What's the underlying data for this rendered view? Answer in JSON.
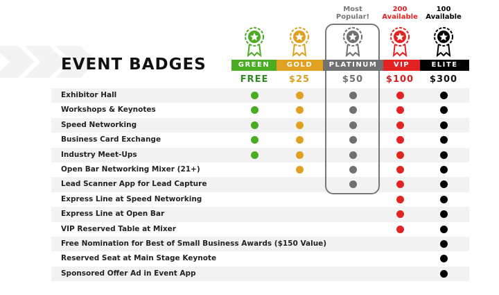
{
  "title": "EVENT BADGES",
  "tiers": [
    {
      "name": "GREEN",
      "price": "FREE",
      "color": "#4bab23",
      "price_color": "#2d8a1e",
      "note": ""
    },
    {
      "name": "GOLD",
      "price": "$25",
      "color": "#e0a020",
      "price_color": "#d9a020",
      "note": ""
    },
    {
      "name": "PLATINUM",
      "price": "$50",
      "color": "#707070",
      "price_color": "#707070",
      "note": "Most Popular!"
    },
    {
      "name": "VIP",
      "price": "$100",
      "color": "#e32222",
      "price_color": "#d82020",
      "note": "200 Available"
    },
    {
      "name": "ELITE",
      "price": "$300",
      "color": "#000000",
      "price_color": "#111111",
      "note": "100 Available"
    }
  ],
  "features": [
    {
      "label": "Exhibitor Hall",
      "tiers": [
        1,
        1,
        1,
        1,
        1
      ]
    },
    {
      "label": "Workshops & Keynotes",
      "tiers": [
        1,
        1,
        1,
        1,
        1
      ]
    },
    {
      "label": "Speed Networking",
      "tiers": [
        1,
        1,
        1,
        1,
        1
      ]
    },
    {
      "label": "Business Card Exchange",
      "tiers": [
        1,
        1,
        1,
        1,
        1
      ]
    },
    {
      "label": "Industry Meet-Ups",
      "tiers": [
        1,
        1,
        1,
        1,
        1
      ]
    },
    {
      "label": "Open Bar Networking Mixer (21+)",
      "tiers": [
        0,
        1,
        1,
        1,
        1
      ]
    },
    {
      "label": "Lead Scanner App for Lead Capture",
      "tiers": [
        0,
        0,
        1,
        1,
        1
      ]
    },
    {
      "label": "Express Line at Speed Networking",
      "tiers": [
        0,
        0,
        0,
        1,
        1
      ]
    },
    {
      "label": "Express Line at Open Bar",
      "tiers": [
        0,
        0,
        0,
        1,
        1
      ]
    },
    {
      "label": "VIP Reserved Table at Mixer",
      "tiers": [
        0,
        0,
        0,
        1,
        1
      ]
    },
    {
      "label": "Free Nomination for Best of Small Business Awards ($150 Value)",
      "tiers": [
        0,
        0,
        0,
        0,
        1
      ]
    },
    {
      "label": "Reserved Seat at Main Stage Keynote",
      "tiers": [
        0,
        0,
        0,
        0,
        1
      ]
    },
    {
      "label": "Sponsored Offer Ad in Event App",
      "tiers": [
        0,
        0,
        0,
        0,
        1
      ]
    }
  ]
}
